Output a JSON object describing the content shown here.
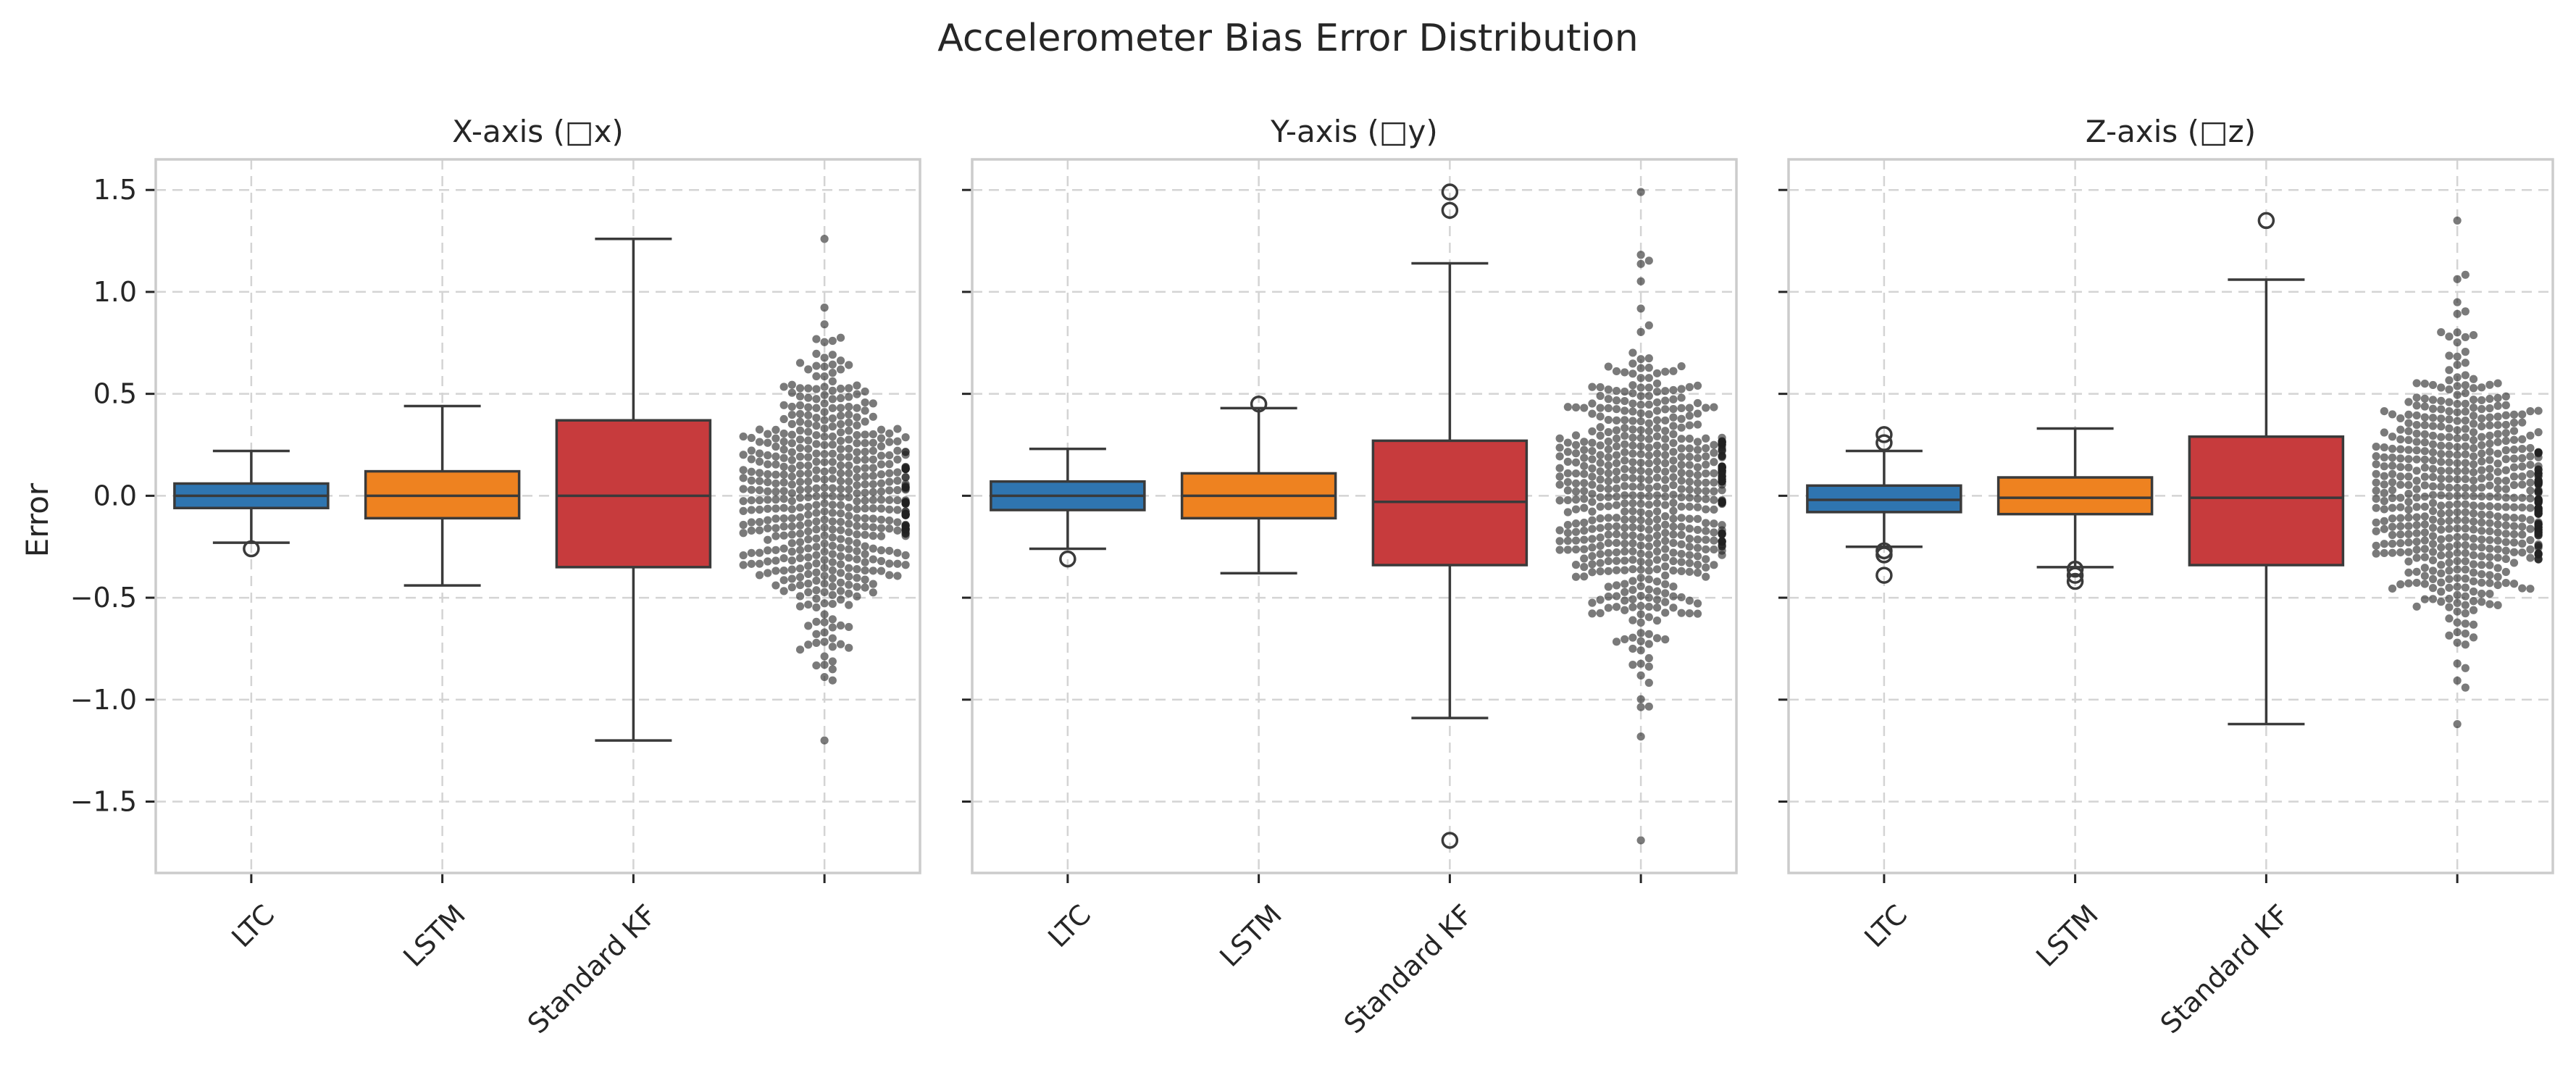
{
  "figure": {
    "title": "Accelerometer Bias Error Distribution",
    "ylabel": "Error"
  },
  "colors": {
    "LTC": "#2f75b0",
    "LSTM": "#ee8220",
    "Standard KF": "#c73b3d",
    "swarm": "#222222"
  },
  "chart_data": [
    {
      "type": "box",
      "title": "X-axis (□x)",
      "categories": [
        "LTC",
        "LSTM",
        "Standard KF",
        ""
      ],
      "ylabel": "Error",
      "ylim": [
        -1.85,
        1.65
      ],
      "yticks": [
        -1.5,
        -1.0,
        -0.5,
        0.0,
        0.5,
        1.0,
        1.5
      ],
      "ytick_labels": [
        "−1.5",
        "−1.0",
        "−0.5",
        "0.0",
        "0.5",
        "1.0",
        "1.5"
      ],
      "grid": true,
      "boxes": [
        {
          "name": "LTC",
          "q1": -0.06,
          "median": 0.0,
          "q3": 0.06,
          "whisker_low": -0.23,
          "whisker_high": 0.22,
          "outliers": [
            -0.26
          ]
        },
        {
          "name": "LSTM",
          "q1": -0.11,
          "median": 0.0,
          "q3": 0.12,
          "whisker_low": -0.44,
          "whisker_high": 0.44,
          "outliers": []
        },
        {
          "name": "Standard KF",
          "q1": -0.35,
          "median": 0.0,
          "q3": 0.37,
          "whisker_low": -1.2,
          "whisker_high": 1.26,
          "outliers": []
        }
      ],
      "swarm": {
        "position": 4,
        "n": 520,
        "min": -1.2,
        "max": 1.26,
        "sd": 0.33
      }
    },
    {
      "type": "box",
      "title": "Y-axis (□y)",
      "categories": [
        "LTC",
        "LSTM",
        "Standard KF",
        ""
      ],
      "ylim": [
        -1.85,
        1.65
      ],
      "yticks": [
        -1.5,
        -1.0,
        -0.5,
        0.0,
        0.5,
        1.0,
        1.5
      ],
      "grid": true,
      "boxes": [
        {
          "name": "LTC",
          "q1": -0.07,
          "median": 0.0,
          "q3": 0.07,
          "whisker_low": -0.26,
          "whisker_high": 0.23,
          "outliers": [
            -0.31
          ]
        },
        {
          "name": "LSTM",
          "q1": -0.11,
          "median": 0.0,
          "q3": 0.11,
          "whisker_low": -0.38,
          "whisker_high": 0.43,
          "outliers": [
            0.45
          ]
        },
        {
          "name": "Standard KF",
          "q1": -0.34,
          "median": -0.03,
          "q3": 0.27,
          "whisker_low": -1.09,
          "whisker_high": 1.14,
          "outliers": [
            1.49,
            1.4,
            -1.69
          ]
        }
      ],
      "swarm": {
        "position": 4,
        "n": 560,
        "min": -1.69,
        "max": 1.49,
        "sd": 0.35
      }
    },
    {
      "type": "box",
      "title": "Z-axis (□z)",
      "categories": [
        "LTC",
        "LSTM",
        "Standard KF",
        ""
      ],
      "ylim": [
        -1.85,
        1.65
      ],
      "yticks": [
        -1.5,
        -1.0,
        -0.5,
        0.0,
        0.5,
        1.0,
        1.5
      ],
      "grid": true,
      "boxes": [
        {
          "name": "LTC",
          "q1": -0.08,
          "median": -0.02,
          "q3": 0.05,
          "whisker_low": -0.25,
          "whisker_high": 0.22,
          "outliers": [
            0.3,
            0.26,
            -0.27,
            -0.29,
            -0.39
          ]
        },
        {
          "name": "LSTM",
          "q1": -0.09,
          "median": -0.01,
          "q3": 0.09,
          "whisker_low": -0.35,
          "whisker_high": 0.33,
          "outliers": [
            -0.36,
            -0.39,
            -0.42
          ]
        },
        {
          "name": "Standard KF",
          "q1": -0.34,
          "median": -0.01,
          "q3": 0.29,
          "whisker_low": -1.12,
          "whisker_high": 1.06,
          "outliers": [
            1.35
          ]
        }
      ],
      "swarm": {
        "position": 4,
        "n": 580,
        "min": -1.12,
        "max": 1.35,
        "sd": 0.33
      }
    }
  ]
}
